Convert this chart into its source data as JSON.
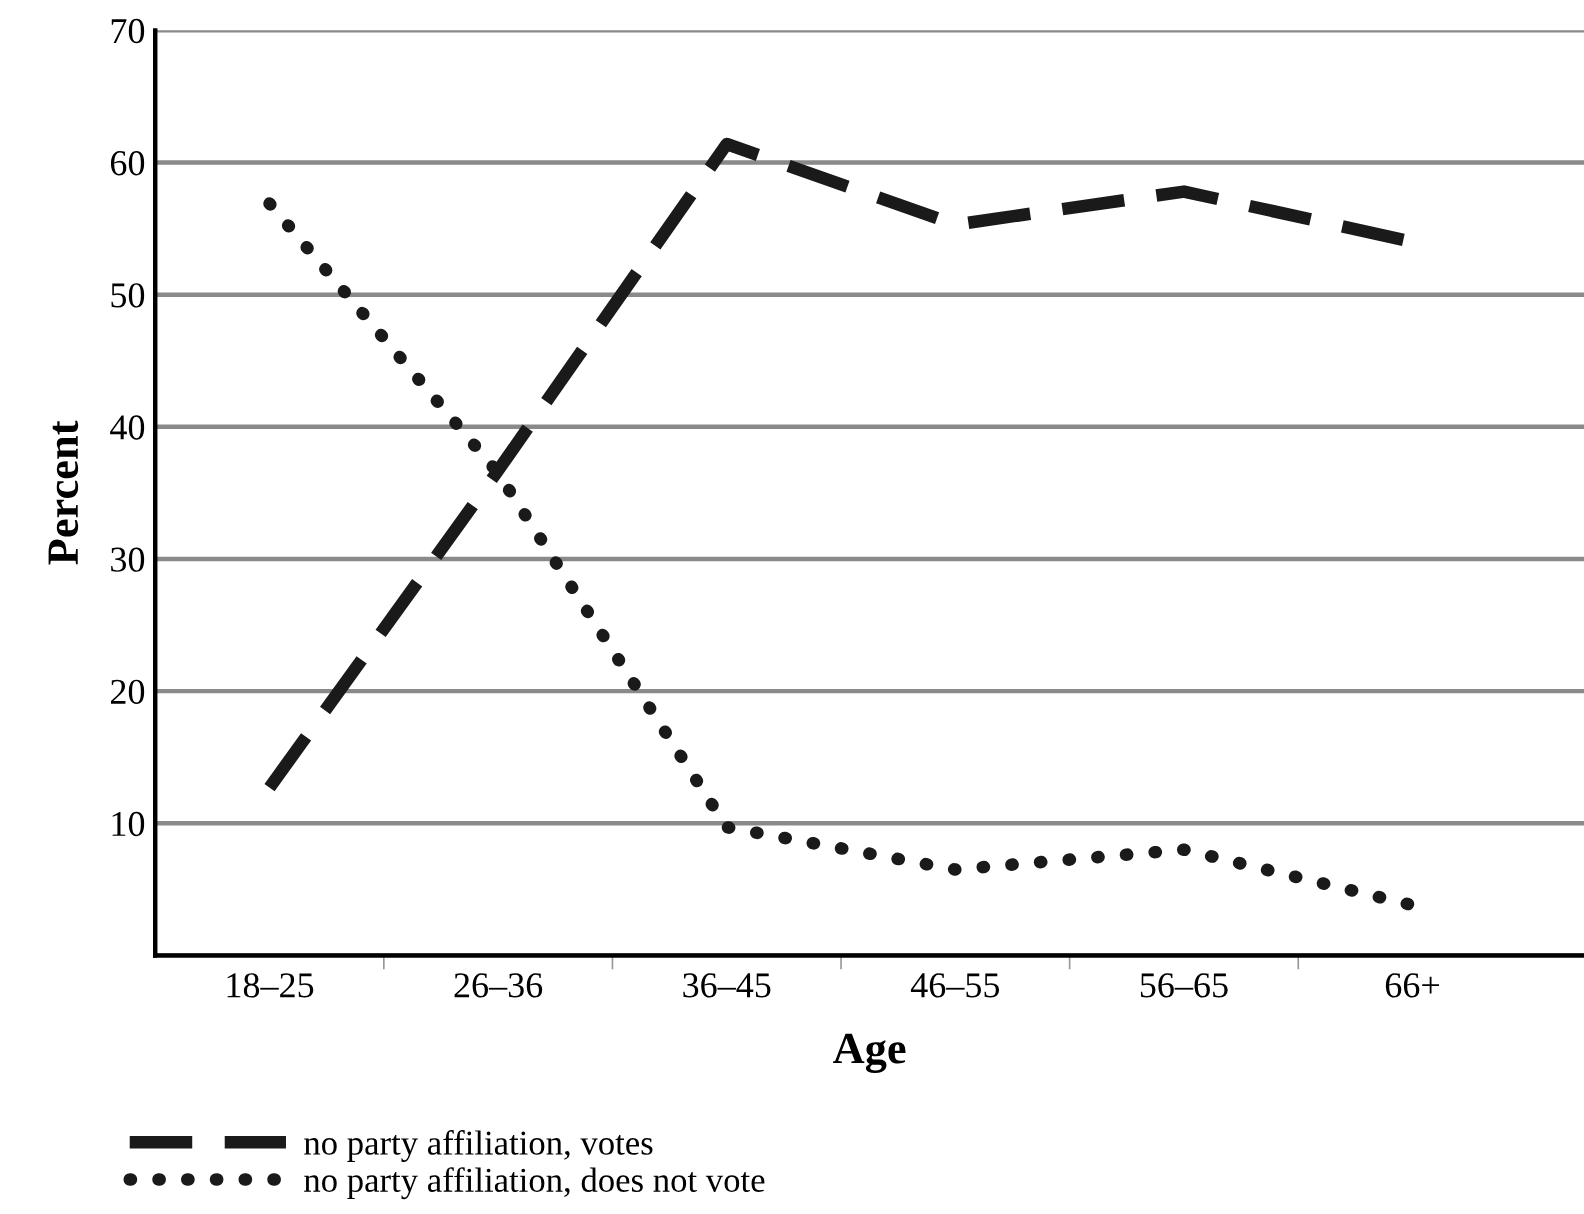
{
  "chart_data": {
    "type": "line",
    "xlabel": "Age",
    "ylabel": "Percent",
    "categories": [
      "18–25",
      "26–36",
      "36–45",
      "46–55",
      "56–65",
      "66+"
    ],
    "series": [
      {
        "name": "no party affiliation, votes",
        "color": "#1a1a1a",
        "line_style": "dashed",
        "values": [
          12.7,
          36.7,
          61.4,
          55.3,
          57.8,
          54
        ]
      },
      {
        "name": "no party affiliation, does not vote",
        "color": "#1a1a1a",
        "line_style": "dotted",
        "values": [
          56.9,
          36.5,
          9.7,
          6.5,
          8.0,
          3.8
        ]
      }
    ],
    "ylim": [
      0,
      70
    ],
    "yticks": [
      {
        "value": 0,
        "label": null
      },
      10,
      20,
      30,
      40,
      50,
      60,
      70
    ],
    "grid": "y",
    "legend": "bottom left",
    "marker": "none"
  }
}
